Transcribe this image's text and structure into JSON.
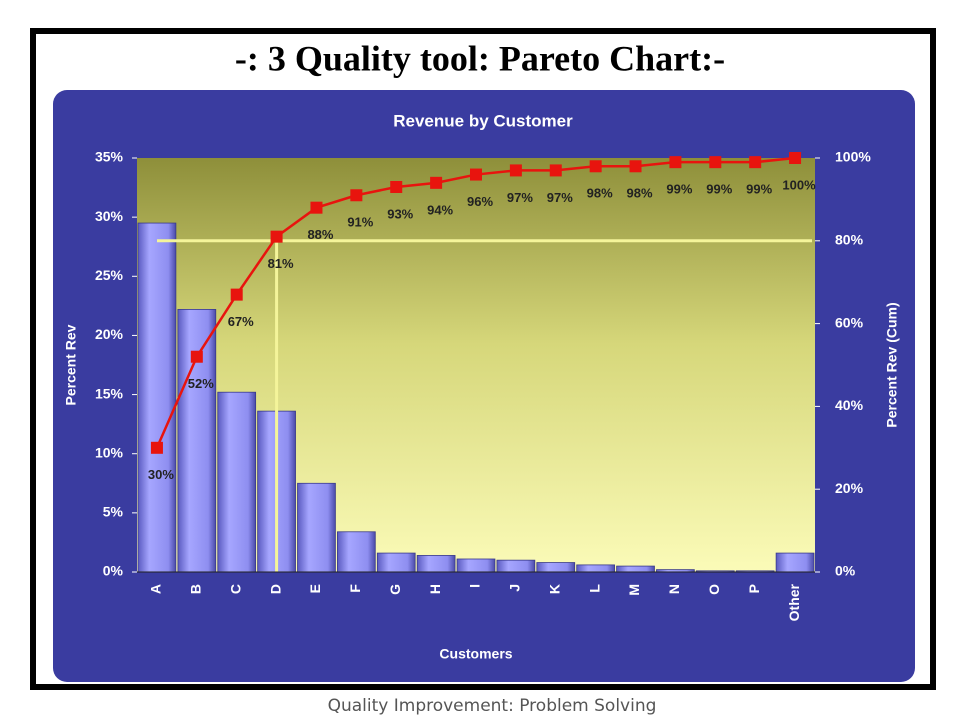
{
  "slide": {
    "title": "-: 3 Quality tool: Pareto Chart:-",
    "footer": "Quality Improvement: Problem Solving"
  },
  "chart_data": {
    "type": "pareto",
    "title": "Revenue by Customer",
    "xlabel": "Customers",
    "ylabel": "Percent Rev",
    "y2label": "Percent Rev (Cum)",
    "categories": [
      "A",
      "B",
      "C",
      "D",
      "E",
      "F",
      "G",
      "H",
      "I",
      "J",
      "K",
      "L",
      "M",
      "N",
      "O",
      "P",
      "Other"
    ],
    "series": [
      {
        "type": "bar",
        "color": "#8f8ff2",
        "values": [
          29.5,
          22.2,
          15.2,
          13.6,
          7.5,
          3.4,
          1.6,
          1.4,
          1.1,
          1.0,
          0.8,
          0.6,
          0.5,
          0.2,
          0.1,
          0.1,
          1.6
        ]
      },
      {
        "type": "line",
        "axis": "y2",
        "color": "#e8140e",
        "values": [
          30,
          52,
          67,
          81,
          88,
          91,
          93,
          94,
          96,
          97,
          97,
          98,
          98,
          99,
          99,
          99,
          100
        ],
        "value_labels": [
          "30%",
          "52%",
          "67%",
          "81%",
          "88%",
          "91%",
          "93%",
          "94%",
          "96%",
          "97%",
          "97%",
          "98%",
          "98%",
          "99%",
          "99%",
          "99%",
          "100%"
        ]
      }
    ],
    "ylim": [
      0,
      35
    ],
    "yticks": [
      {
        "value": 0,
        "label": "0%"
      },
      {
        "value": 5,
        "label": "5%"
      },
      {
        "value": 10,
        "label": "10%"
      },
      {
        "value": 15,
        "label": "15%"
      },
      {
        "value": 20,
        "label": "20%"
      },
      {
        "value": 25,
        "label": "25%"
      },
      {
        "value": 30,
        "label": "30%"
      },
      {
        "value": 35,
        "label": "35%"
      }
    ],
    "y2lim": [
      0,
      100
    ],
    "y2ticks": [
      {
        "value": 0,
        "label": "0%"
      },
      {
        "value": 20,
        "label": "20%"
      },
      {
        "value": 40,
        "label": "40%"
      },
      {
        "value": 60,
        "label": "60%"
      },
      {
        "value": 80,
        "label": "80%"
      },
      {
        "value": 100,
        "label": "100%"
      }
    ],
    "threshold": {
      "y2": 80,
      "x": "D"
    },
    "threshold_color": "#f4f49a"
  }
}
